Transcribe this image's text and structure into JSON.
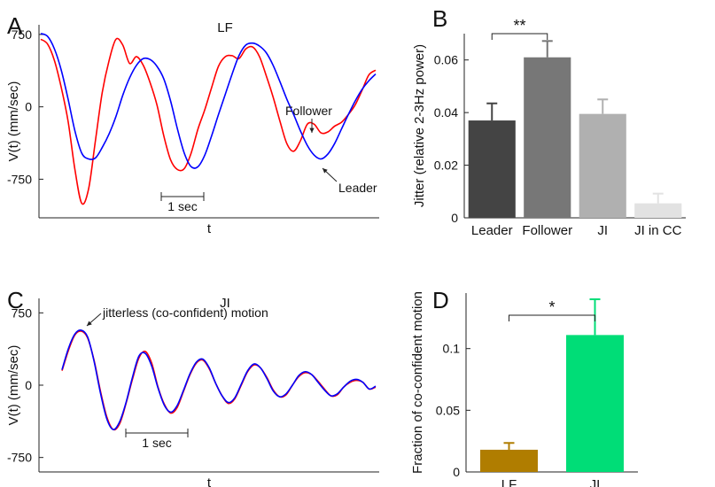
{
  "chart_data": [
    {
      "id": "A",
      "panel": "A",
      "type": "line",
      "title": "LF",
      "xlabel": "t",
      "ylabel": "V(t) (mm/sec)",
      "yticks": [
        "750",
        "0",
        "-750"
      ],
      "ylim": [
        -1150,
        850
      ],
      "scalebar_label": "1 sec",
      "annotations": [
        "Follower",
        "Leader"
      ],
      "series": [
        {
          "name": "Leader",
          "color": "#0000ff",
          "y": [
            760,
            730,
            600,
            380,
            80,
            -250,
            -480,
            -540,
            -530,
            -420,
            -280,
            -100,
            120,
            300,
            430,
            500,
            490,
            420,
            290,
            60,
            -230,
            -480,
            -620,
            -620,
            -500,
            -300,
            -80,
            130,
            340,
            530,
            640,
            660,
            630,
            560,
            430,
            260,
            80,
            -80,
            -250,
            -400,
            -500,
            -540,
            -490,
            -380,
            -230,
            -80,
            60,
            180,
            270,
            340
          ]
        },
        {
          "name": "Follower",
          "color": "#ff0000",
          "y": [
            700,
            650,
            480,
            200,
            -150,
            -650,
            -1000,
            -850,
            -350,
            150,
            480,
            700,
            640,
            450,
            520,
            430,
            250,
            20,
            -300,
            -550,
            -650,
            -640,
            -480,
            -230,
            -30,
            200,
            420,
            520,
            530,
            500,
            600,
            620,
            520,
            320,
            100,
            -150,
            -380,
            -460,
            -350,
            -180,
            -180,
            -270,
            -260,
            -200,
            -160,
            -80,
            20,
            170,
            330,
            380
          ]
        }
      ]
    },
    {
      "id": "B",
      "panel": "B",
      "type": "bar",
      "ylabel": "Jitter (relative 2-3Hz power)",
      "yticks": [
        "0",
        "0.02",
        "0.04",
        "0.06"
      ],
      "ylim": [
        0,
        0.07
      ],
      "categories": [
        "Leader",
        "Follower",
        "JI",
        "JI in CC"
      ],
      "values": [
        0.037,
        0.061,
        0.0395,
        0.0055
      ],
      "errors": [
        0.0065,
        0.0062,
        0.0055,
        0.0037
      ],
      "colors": [
        "#444444",
        "#777777",
        "#b0b0b0",
        "#e2e2e2"
      ],
      "significance": "**"
    },
    {
      "id": "C",
      "panel": "C",
      "type": "line",
      "title": "JI",
      "xlabel": "t",
      "ylabel": "V(t) (mm/sec)",
      "yticks": [
        "750",
        "0",
        "-750"
      ],
      "ylim": [
        -900,
        900
      ],
      "scalebar_label": "1 sec",
      "annotations": [
        "jitterless (co-confident) motion"
      ],
      "series": [
        {
          "name": "Leader",
          "color": "#0000ff",
          "y": [
            160,
            380,
            530,
            570,
            500,
            250,
            -80,
            -350,
            -460,
            -380,
            -180,
            80,
            300,
            330,
            200,
            -30,
            -210,
            -280,
            -210,
            -50,
            120,
            240,
            270,
            180,
            20,
            -110,
            -180,
            -130,
            10,
            150,
            220,
            180,
            70,
            -60,
            -120,
            -90,
            0,
            100,
            140,
            110,
            30,
            -50,
            -110,
            -90,
            -20,
            40,
            60,
            30,
            -40,
            -10
          ]
        },
        {
          "name": "Follower",
          "color": "#ff0000",
          "y": [
            150,
            360,
            520,
            560,
            490,
            260,
            -60,
            -330,
            -460,
            -400,
            -190,
            60,
            280,
            350,
            230,
            -20,
            -200,
            -290,
            -230,
            -60,
            110,
            230,
            260,
            170,
            20,
            -110,
            -190,
            -140,
            0,
            140,
            210,
            180,
            80,
            -50,
            -120,
            -100,
            0,
            90,
            130,
            110,
            40,
            -40,
            -110,
            -100,
            -20,
            30,
            50,
            30,
            -40,
            -20
          ]
        }
      ]
    },
    {
      "id": "D",
      "panel": "D",
      "type": "bar",
      "ylabel": "Fraction of co-confident motion",
      "yticks": [
        "0",
        "0.05",
        "0.1"
      ],
      "ylim": [
        0,
        0.145
      ],
      "categories": [
        "LF",
        "JI"
      ],
      "values": [
        0.018,
        0.111
      ],
      "errors": [
        0.0055,
        0.029
      ],
      "colors": [
        "#b07d00",
        "#00dd77"
      ],
      "significance": "*"
    }
  ]
}
